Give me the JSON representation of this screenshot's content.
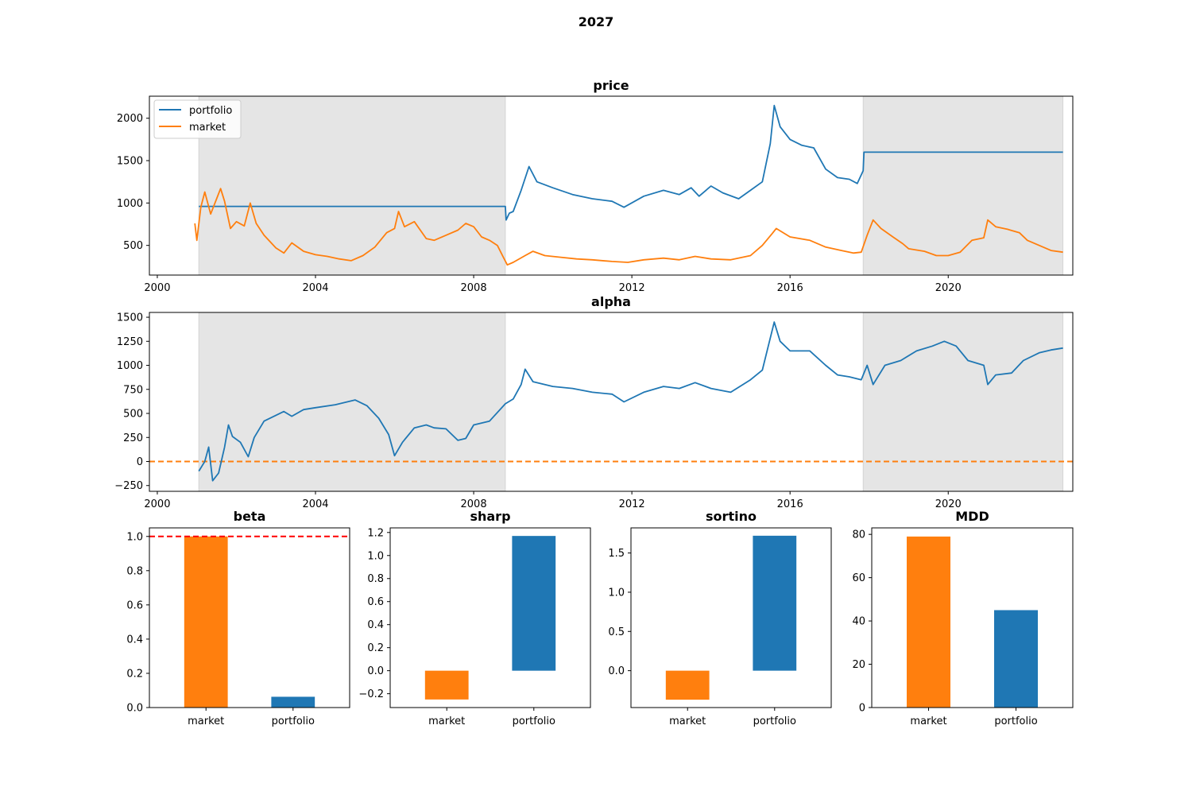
{
  "figure_title": "2027",
  "colors": {
    "portfolio": "#1f77b4",
    "market": "#ff7f0e",
    "shade": "#e5e5e5",
    "beta_ref_line": "#ff0000",
    "alpha_zero_line": "#ff7f0e"
  },
  "chart_data": [
    {
      "id": "price",
      "type": "line",
      "title": "price",
      "xlabel": "",
      "ylabel": "",
      "xlim": [
        1999.8,
        2023.15
      ],
      "ylim": [
        150,
        2260
      ],
      "xticks": [
        2000,
        2004,
        2008,
        2012,
        2016,
        2020
      ],
      "yticks": [
        500,
        1000,
        1500,
        2000
      ],
      "legend_position": "upper-left",
      "grid": false,
      "shaded_periods": [
        [
          2001.05,
          2008.8
        ],
        [
          2017.85,
          2022.9
        ]
      ],
      "series": [
        {
          "name": "portfolio",
          "color_key": "portfolio",
          "points": [
            [
              2001.05,
              960
            ],
            [
              2008.8,
              960
            ],
            [
              2008.82,
              800
            ],
            [
              2008.9,
              880
            ],
            [
              2009.0,
              900
            ],
            [
              2009.2,
              1150
            ],
            [
              2009.4,
              1430
            ],
            [
              2009.6,
              1250
            ],
            [
              2010.0,
              1180
            ],
            [
              2010.5,
              1100
            ],
            [
              2011.0,
              1050
            ],
            [
              2011.5,
              1020
            ],
            [
              2011.8,
              950
            ],
            [
              2012.3,
              1080
            ],
            [
              2012.8,
              1150
            ],
            [
              2013.2,
              1100
            ],
            [
              2013.5,
              1180
            ],
            [
              2013.7,
              1080
            ],
            [
              2014.0,
              1200
            ],
            [
              2014.3,
              1120
            ],
            [
              2014.7,
              1050
            ],
            [
              2015.0,
              1150
            ],
            [
              2015.3,
              1250
            ],
            [
              2015.5,
              1700
            ],
            [
              2015.6,
              2150
            ],
            [
              2015.75,
              1900
            ],
            [
              2016.0,
              1750
            ],
            [
              2016.3,
              1680
            ],
            [
              2016.6,
              1650
            ],
            [
              2016.9,
              1400
            ],
            [
              2017.2,
              1300
            ],
            [
              2017.5,
              1280
            ],
            [
              2017.7,
              1230
            ],
            [
              2017.85,
              1380
            ],
            [
              2017.87,
              1600
            ],
            [
              2022.9,
              1600
            ]
          ]
        },
        {
          "name": "market",
          "color_key": "market",
          "points": [
            [
              2000.95,
              760
            ],
            [
              2001.0,
              560
            ],
            [
              2001.1,
              950
            ],
            [
              2001.2,
              1130
            ],
            [
              2001.35,
              870
            ],
            [
              2001.5,
              1050
            ],
            [
              2001.6,
              1170
            ],
            [
              2001.7,
              1020
            ],
            [
              2001.85,
              700
            ],
            [
              2002.0,
              780
            ],
            [
              2002.2,
              730
            ],
            [
              2002.35,
              1000
            ],
            [
              2002.5,
              760
            ],
            [
              2002.7,
              620
            ],
            [
              2003.0,
              470
            ],
            [
              2003.2,
              410
            ],
            [
              2003.4,
              530
            ],
            [
              2003.7,
              430
            ],
            [
              2004.0,
              390
            ],
            [
              2004.3,
              370
            ],
            [
              2004.6,
              340
            ],
            [
              2004.9,
              320
            ],
            [
              2005.2,
              380
            ],
            [
              2005.5,
              480
            ],
            [
              2005.8,
              650
            ],
            [
              2006.0,
              700
            ],
            [
              2006.1,
              900
            ],
            [
              2006.25,
              720
            ],
            [
              2006.5,
              780
            ],
            [
              2006.8,
              580
            ],
            [
              2007.0,
              560
            ],
            [
              2007.3,
              620
            ],
            [
              2007.6,
              680
            ],
            [
              2007.8,
              760
            ],
            [
              2008.0,
              720
            ],
            [
              2008.2,
              600
            ],
            [
              2008.4,
              560
            ],
            [
              2008.6,
              500
            ],
            [
              2008.75,
              360
            ],
            [
              2008.85,
              270
            ],
            [
              2009.0,
              300
            ],
            [
              2009.3,
              380
            ],
            [
              2009.5,
              430
            ],
            [
              2009.8,
              380
            ],
            [
              2010.2,
              360
            ],
            [
              2010.6,
              340
            ],
            [
              2011.0,
              330
            ],
            [
              2011.5,
              310
            ],
            [
              2011.9,
              300
            ],
            [
              2012.3,
              330
            ],
            [
              2012.8,
              350
            ],
            [
              2013.2,
              330
            ],
            [
              2013.6,
              370
            ],
            [
              2014.0,
              340
            ],
            [
              2014.5,
              330
            ],
            [
              2015.0,
              380
            ],
            [
              2015.3,
              500
            ],
            [
              2015.55,
              640
            ],
            [
              2015.65,
              700
            ],
            [
              2016.0,
              600
            ],
            [
              2016.5,
              560
            ],
            [
              2016.9,
              480
            ],
            [
              2017.3,
              440
            ],
            [
              2017.6,
              410
            ],
            [
              2017.8,
              420
            ],
            [
              2017.95,
              620
            ],
            [
              2018.1,
              800
            ],
            [
              2018.3,
              700
            ],
            [
              2018.6,
              600
            ],
            [
              2018.85,
              520
            ],
            [
              2019.0,
              460
            ],
            [
              2019.4,
              430
            ],
            [
              2019.7,
              380
            ],
            [
              2020.0,
              380
            ],
            [
              2020.3,
              420
            ],
            [
              2020.6,
              560
            ],
            [
              2020.9,
              590
            ],
            [
              2021.0,
              800
            ],
            [
              2021.2,
              720
            ],
            [
              2021.5,
              690
            ],
            [
              2021.8,
              650
            ],
            [
              2022.0,
              560
            ],
            [
              2022.3,
              500
            ],
            [
              2022.6,
              440
            ],
            [
              2022.9,
              420
            ]
          ]
        }
      ]
    },
    {
      "id": "alpha",
      "type": "line",
      "title": "alpha",
      "xlabel": "",
      "ylabel": "",
      "xlim": [
        1999.8,
        2023.15
      ],
      "ylim": [
        -310,
        1550
      ],
      "xticks": [
        2000,
        2004,
        2008,
        2012,
        2016,
        2020
      ],
      "yticks": [
        -250,
        0,
        250,
        500,
        750,
        1000,
        1250,
        1500
      ],
      "grid": false,
      "reference_line_y": 0,
      "shaded_periods": [
        [
          2001.05,
          2008.8
        ],
        [
          2017.85,
          2022.9
        ]
      ],
      "series": [
        {
          "name": "",
          "color_key": "portfolio",
          "points": [
            [
              2001.05,
              -100
            ],
            [
              2001.2,
              0
            ],
            [
              2001.3,
              150
            ],
            [
              2001.4,
              -200
            ],
            [
              2001.55,
              -120
            ],
            [
              2001.7,
              150
            ],
            [
              2001.8,
              380
            ],
            [
              2001.9,
              260
            ],
            [
              2002.1,
              200
            ],
            [
              2002.3,
              50
            ],
            [
              2002.45,
              250
            ],
            [
              2002.7,
              420
            ],
            [
              2003.0,
              480
            ],
            [
              2003.2,
              520
            ],
            [
              2003.4,
              470
            ],
            [
              2003.7,
              540
            ],
            [
              2004.0,
              560
            ],
            [
              2004.5,
              590
            ],
            [
              2005.0,
              640
            ],
            [
              2005.3,
              580
            ],
            [
              2005.6,
              450
            ],
            [
              2005.85,
              280
            ],
            [
              2006.0,
              60
            ],
            [
              2006.2,
              200
            ],
            [
              2006.5,
              350
            ],
            [
              2006.8,
              380
            ],
            [
              2007.0,
              350
            ],
            [
              2007.3,
              340
            ],
            [
              2007.6,
              220
            ],
            [
              2007.8,
              240
            ],
            [
              2008.0,
              380
            ],
            [
              2008.4,
              420
            ],
            [
              2008.8,
              600
            ],
            [
              2009.0,
              650
            ],
            [
              2009.2,
              800
            ],
            [
              2009.3,
              960
            ],
            [
              2009.5,
              830
            ],
            [
              2010.0,
              780
            ],
            [
              2010.5,
              760
            ],
            [
              2011.0,
              720
            ],
            [
              2011.5,
              700
            ],
            [
              2011.8,
              620
            ],
            [
              2012.3,
              720
            ],
            [
              2012.8,
              780
            ],
            [
              2013.2,
              760
            ],
            [
              2013.6,
              820
            ],
            [
              2014.0,
              760
            ],
            [
              2014.5,
              720
            ],
            [
              2015.0,
              850
            ],
            [
              2015.3,
              950
            ],
            [
              2015.45,
              1200
            ],
            [
              2015.6,
              1450
            ],
            [
              2015.75,
              1250
            ],
            [
              2016.0,
              1150
            ],
            [
              2016.5,
              1150
            ],
            [
              2016.9,
              1000
            ],
            [
              2017.2,
              900
            ],
            [
              2017.5,
              880
            ],
            [
              2017.8,
              850
            ],
            [
              2017.95,
              1000
            ],
            [
              2018.1,
              800
            ],
            [
              2018.4,
              1000
            ],
            [
              2018.8,
              1050
            ],
            [
              2019.2,
              1150
            ],
            [
              2019.6,
              1200
            ],
            [
              2019.9,
              1250
            ],
            [
              2020.2,
              1200
            ],
            [
              2020.5,
              1050
            ],
            [
              2020.9,
              1000
            ],
            [
              2021.0,
              800
            ],
            [
              2021.2,
              900
            ],
            [
              2021.6,
              920
            ],
            [
              2021.9,
              1050
            ],
            [
              2022.3,
              1130
            ],
            [
              2022.6,
              1160
            ],
            [
              2022.9,
              1180
            ]
          ]
        }
      ]
    },
    {
      "id": "beta",
      "type": "bar",
      "title": "beta",
      "categories": [
        "market",
        "portfolio"
      ],
      "values": [
        1.0,
        0.063
      ],
      "bar_color_keys": [
        "market",
        "portfolio"
      ],
      "ylim": [
        0,
        1.05
      ],
      "yticks": [
        0.0,
        0.2,
        0.4,
        0.6,
        0.8,
        1.0
      ],
      "reference_line_y": 1.0
    },
    {
      "id": "sharp",
      "type": "bar",
      "title": "sharp",
      "categories": [
        "market",
        "portfolio"
      ],
      "values": [
        -0.25,
        1.17
      ],
      "bar_color_keys": [
        "market",
        "portfolio"
      ],
      "ylim": [
        -0.32,
        1.24
      ],
      "yticks": [
        -0.2,
        0.0,
        0.2,
        0.4,
        0.6,
        0.8,
        1.0,
        1.2
      ]
    },
    {
      "id": "sortino",
      "type": "bar",
      "title": "sortino",
      "categories": [
        "market",
        "portfolio"
      ],
      "values": [
        -0.37,
        1.72
      ],
      "bar_color_keys": [
        "market",
        "portfolio"
      ],
      "ylim": [
        -0.47,
        1.82
      ],
      "yticks": [
        0.0,
        0.5,
        1.0,
        1.5
      ]
    },
    {
      "id": "mdd",
      "type": "bar",
      "title": "MDD",
      "categories": [
        "market",
        "portfolio"
      ],
      "values": [
        79,
        45
      ],
      "bar_color_keys": [
        "market",
        "portfolio"
      ],
      "ylim": [
        0,
        83
      ],
      "yticks": [
        0,
        20,
        40,
        60,
        80
      ]
    }
  ]
}
